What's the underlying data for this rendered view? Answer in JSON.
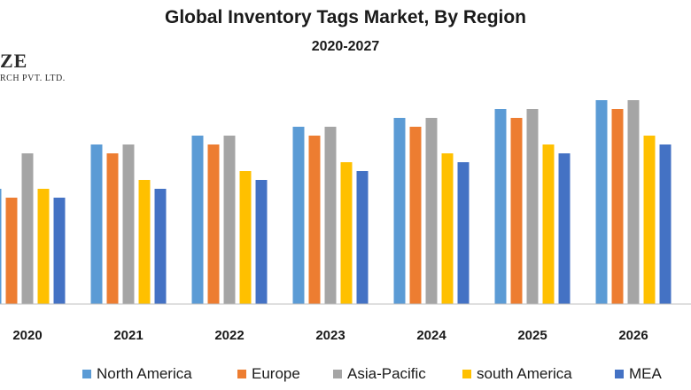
{
  "chart_data": {
    "type": "bar",
    "title": "Global Inventory Tags Market, By Region",
    "subtitle": "2020-2027",
    "categories": [
      "2020",
      "2021",
      "2022",
      "2023",
      "2024",
      "2025",
      "2026"
    ],
    "series": [
      {
        "name": "North America",
        "color": "#5B9BD5",
        "values": [
          13,
          18,
          19,
          20,
          21,
          22,
          23
        ]
      },
      {
        "name": "Europe",
        "color": "#ED7D31",
        "values": [
          12,
          17,
          18,
          19,
          20,
          21,
          22
        ]
      },
      {
        "name": "Asia-Pacific",
        "color": "#A5A5A5",
        "values": [
          17,
          18,
          19,
          20,
          21,
          22,
          23
        ]
      },
      {
        "name": "south America",
        "color": "#FFC000",
        "values": [
          13,
          14,
          15,
          16,
          17,
          18,
          19
        ]
      },
      {
        "name": "MEA",
        "color": "#4472C4",
        "values": [
          12,
          13,
          14,
          15,
          16,
          17,
          18
        ]
      }
    ],
    "ylim": [
      0,
      23.5
    ],
    "xlabel": "",
    "ylabel": "",
    "grid": false,
    "legend": "bottom"
  },
  "watermark": {
    "line1": "ZE",
    "line2": "RCH PVT. LTD."
  }
}
